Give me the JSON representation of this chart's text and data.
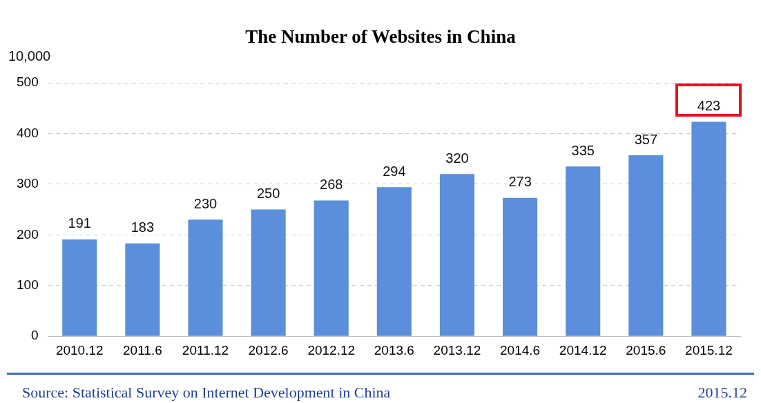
{
  "chart_data": {
    "type": "bar",
    "title": "The Number of Websites in China",
    "ylabel": "10,000",
    "categories": [
      "2010.12",
      "2011.6",
      "2011.12",
      "2012.6",
      "2012.12",
      "2013.6",
      "2013.12",
      "2014.6",
      "2014.12",
      "2015.6",
      "2015.12"
    ],
    "values": [
      191,
      183,
      230,
      250,
      268,
      294,
      320,
      273,
      335,
      357,
      423
    ],
    "color": "#5b8fdb",
    "ylim": [
      0,
      500
    ],
    "yticks": [
      0,
      100,
      200,
      300,
      400,
      500
    ],
    "grid": "y",
    "data_labels": true,
    "legend": false,
    "annotations": [
      "Source: Statistical Survey on Internet Development in China",
      "2015.12"
    ]
  }
}
